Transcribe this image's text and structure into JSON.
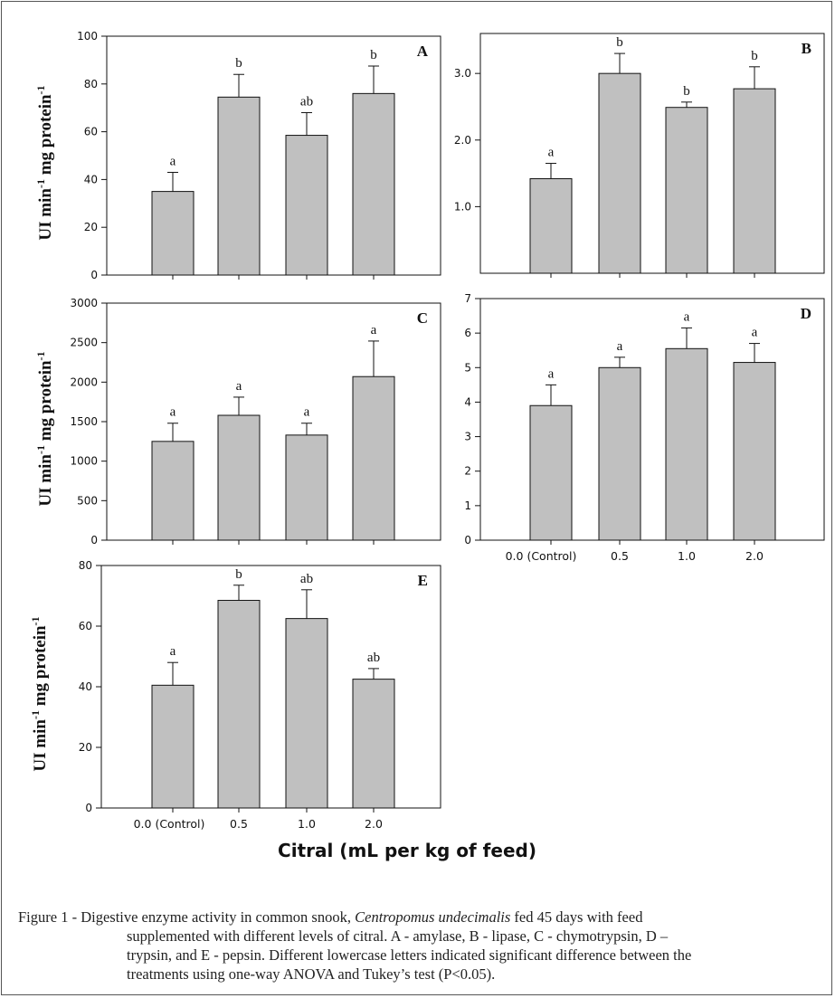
{
  "colors": {
    "bar_fill": "#c0c0c0",
    "stroke": "#111111",
    "frame": "#555555"
  },
  "categories": [
    "0.0 (Control)",
    "0.5",
    "1.0",
    "2.0"
  ],
  "x_title": "Citral (mL per kg of feed)",
  "caption": {
    "line1_prefix": "Figure 1 - Digestive enzyme activity in common snook, ",
    "species": "Centropomus undecimalis",
    "line1_suffix": " fed 45 days with feed",
    "line2": "supplemented with different levels of citral. A - amylase, B - lipase, C - chymotrypsin, D –",
    "line3": "trypsin, and E - pepsin. Different lowercase letters indicated significant difference between the",
    "line4": "treatments using one-way ANOVA and Tukey’s test (P<0.05)."
  },
  "chart_data": [
    {
      "panel": "A",
      "type": "bar",
      "ylabel": "UI min-1 mg protein-1",
      "ylim": [
        0,
        100
      ],
      "yticks": [
        "0",
        "20",
        "40",
        "60",
        "80",
        "100"
      ],
      "categories": [
        "0.0 (Control)",
        "0.5",
        "1.0",
        "2.0"
      ],
      "values": [
        35,
        74.5,
        58.5,
        76
      ],
      "errors": [
        8,
        9.5,
        9.5,
        11.5
      ],
      "letters": [
        "a",
        "b",
        "ab",
        "b"
      ]
    },
    {
      "panel": "B",
      "type": "bar",
      "ylabel": "",
      "ylim": [
        0,
        3.6
      ],
      "yticks": [
        "1.0",
        "2.0",
        "3.0"
      ],
      "categories": [
        "0.0 (Control)",
        "0.5",
        "1.0",
        "2.0"
      ],
      "values": [
        1.42,
        3.0,
        2.49,
        2.77
      ],
      "errors": [
        0.23,
        0.3,
        0.08,
        0.33
      ],
      "letters": [
        "a",
        "b",
        "b",
        "b"
      ]
    },
    {
      "panel": "C",
      "type": "bar",
      "ylabel": "UI min-1 mg protein-1",
      "ylim": [
        0,
        3000
      ],
      "yticks": [
        "0",
        "500",
        "1000",
        "1500",
        "2000",
        "2500",
        "3000"
      ],
      "categories": [
        "0.0 (Control)",
        "0.5",
        "1.0",
        "2.0"
      ],
      "values": [
        1250,
        1580,
        1330,
        2070
      ],
      "errors": [
        230,
        230,
        150,
        450
      ],
      "letters": [
        "a",
        "a",
        "a",
        "a"
      ]
    },
    {
      "panel": "D",
      "type": "bar",
      "ylabel": "",
      "ylim": [
        0,
        7
      ],
      "yticks": [
        "0",
        "1",
        "2",
        "3",
        "4",
        "5",
        "6",
        "7"
      ],
      "categories": [
        "0.0 (Control)",
        "0.5",
        "1.0",
        "2.0"
      ],
      "values": [
        3.9,
        5.0,
        5.55,
        5.15
      ],
      "errors": [
        0.6,
        0.3,
        0.6,
        0.55
      ],
      "letters": [
        "a",
        "a",
        "a",
        "a"
      ]
    },
    {
      "panel": "E",
      "type": "bar",
      "ylabel": "UI min-1 mg protein-1",
      "ylim": [
        0,
        80
      ],
      "yticks": [
        "0",
        "20",
        "40",
        "60",
        "80"
      ],
      "categories": [
        "0.0 (Control)",
        "0.5",
        "1.0",
        "2.0"
      ],
      "values": [
        40.5,
        68.5,
        62.5,
        42.5
      ],
      "errors": [
        7.5,
        5,
        9.5,
        3.5
      ],
      "letters": [
        "a",
        "b",
        "ab",
        "ab"
      ]
    }
  ]
}
